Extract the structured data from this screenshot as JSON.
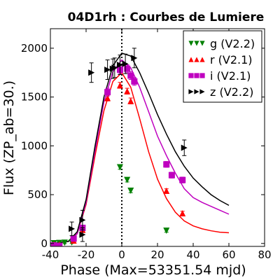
{
  "chart_data": {
    "type": "scatter",
    "title": "04D1rh : Courbes de Lumiere",
    "xlabel": "Phase (Max=53351.54 mjd)",
    "ylabel": "Flux (ZP_ab=30.)",
    "xlim": [
      -40,
      80
    ],
    "ylim": [
      -30,
      2200
    ],
    "xticks": [
      -40,
      -20,
      0,
      20,
      40,
      60,
      80
    ],
    "xtick_labels": [
      "-40",
      "-20",
      "0",
      "20",
      "40",
      "60",
      "80"
    ],
    "yticks": [
      0,
      500,
      1000,
      1500,
      2000
    ],
    "ytick_labels": [
      "0",
      "500",
      "1000",
      "1500",
      "2000"
    ],
    "vline_x": 0,
    "legend_position": "top-right",
    "series": [
      {
        "name": "g (V2.2)",
        "color": "#008000",
        "marker": "triangle-down",
        "points": [
          [
            -38,
            2
          ],
          [
            -35,
            5
          ],
          [
            -32,
            8
          ],
          [
            -28,
            10
          ],
          [
            -1,
            780
          ],
          [
            3,
            650
          ],
          [
            5,
            540
          ],
          [
            25,
            130
          ]
        ],
        "errors": [
          10,
          10,
          10,
          10,
          20,
          20,
          20,
          15
        ],
        "curve": null
      },
      {
        "name": "r (V2.1)",
        "color": "#ff0000",
        "marker": "triangle-up",
        "points": [
          [
            -38,
            -10
          ],
          [
            -35,
            -10
          ],
          [
            -27,
            30
          ],
          [
            -22,
            140
          ],
          [
            -8,
            1490
          ],
          [
            -1,
            1620
          ],
          [
            3,
            1560
          ],
          [
            5,
            1460
          ],
          [
            25,
            540
          ],
          [
            34,
            310
          ]
        ],
        "errors": [
          10,
          10,
          15,
          20,
          30,
          30,
          30,
          30,
          20,
          20
        ],
        "curve": [
          [
            -40,
            0
          ],
          [
            -30,
            20
          ],
          [
            -25,
            100
          ],
          [
            -20,
            400
          ],
          [
            -15,
            900
          ],
          [
            -10,
            1360
          ],
          [
            -5,
            1660
          ],
          [
            0,
            1750
          ],
          [
            5,
            1600
          ],
          [
            10,
            1280
          ],
          [
            15,
            940
          ],
          [
            20,
            660
          ],
          [
            25,
            460
          ],
          [
            30,
            320
          ],
          [
            35,
            230
          ],
          [
            40,
            180
          ],
          [
            45,
            150
          ],
          [
            50,
            130
          ],
          [
            55,
            115
          ],
          [
            60,
            110
          ]
        ]
      },
      {
        "name": "i (V2.1)",
        "color": "#bf00bf",
        "marker": "square",
        "points": [
          [
            -38,
            -20
          ],
          [
            -35,
            -25
          ],
          [
            -27,
            50
          ],
          [
            -22,
            160
          ],
          [
            -8,
            1550
          ],
          [
            -1,
            1780
          ],
          [
            3,
            1790
          ],
          [
            5,
            1720
          ],
          [
            7,
            1660
          ],
          [
            25,
            810
          ],
          [
            28,
            700
          ],
          [
            34,
            650
          ]
        ],
        "errors": [
          10,
          10,
          15,
          20,
          40,
          40,
          40,
          40,
          40,
          30,
          30,
          30
        ],
        "curve": [
          [
            -40,
            0
          ],
          [
            -30,
            20
          ],
          [
            -25,
            100
          ],
          [
            -20,
            420
          ],
          [
            -15,
            950
          ],
          [
            -10,
            1450
          ],
          [
            -5,
            1760
          ],
          [
            0,
            1880
          ],
          [
            5,
            1800
          ],
          [
            10,
            1600
          ],
          [
            15,
            1350
          ],
          [
            20,
            1100
          ],
          [
            25,
            900
          ],
          [
            30,
            720
          ],
          [
            35,
            560
          ],
          [
            40,
            470
          ],
          [
            45,
            420
          ],
          [
            50,
            380
          ],
          [
            55,
            340
          ],
          [
            60,
            300
          ]
        ]
      },
      {
        "name": "z (V2.2)",
        "color": "#000000",
        "marker": "triangle-right",
        "points": [
          [
            -28,
            150
          ],
          [
            -22,
            240
          ],
          [
            -22,
            90
          ],
          [
            -17,
            1750
          ],
          [
            -8,
            1780
          ],
          [
            -5,
            1790
          ],
          [
            -4,
            1800
          ],
          [
            -1,
            1830
          ],
          [
            2,
            1840
          ],
          [
            7,
            1900
          ],
          [
            35,
            980
          ]
        ],
        "errors": [
          70,
          100,
          70,
          100,
          100,
          100,
          100,
          100,
          100,
          100,
          80
        ],
        "curve": [
          [
            -40,
            0
          ],
          [
            -30,
            20
          ],
          [
            -25,
            120
          ],
          [
            -20,
            450
          ],
          [
            -15,
            1000
          ],
          [
            -10,
            1500
          ],
          [
            -5,
            1820
          ],
          [
            0,
            1950
          ],
          [
            5,
            1920
          ],
          [
            10,
            1750
          ],
          [
            15,
            1540
          ],
          [
            20,
            1320
          ],
          [
            25,
            1120
          ],
          [
            30,
            940
          ],
          [
            35,
            790
          ],
          [
            40,
            670
          ],
          [
            45,
            580
          ],
          [
            50,
            500
          ],
          [
            55,
            440
          ],
          [
            60,
            390
          ]
        ]
      }
    ]
  }
}
